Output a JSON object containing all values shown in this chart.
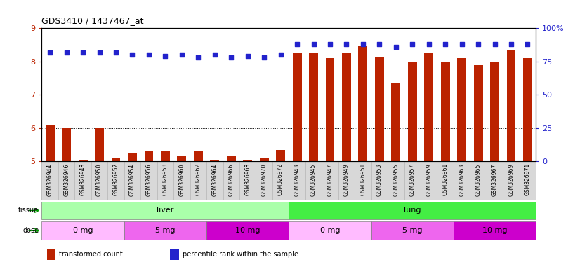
{
  "title": "GDS3410 / 1437467_at",
  "samples": [
    "GSM326944",
    "GSM326946",
    "GSM326948",
    "GSM326950",
    "GSM326952",
    "GSM326954",
    "GSM326956",
    "GSM326958",
    "GSM326960",
    "GSM326962",
    "GSM326964",
    "GSM326966",
    "GSM326968",
    "GSM326970",
    "GSM326972",
    "GSM326943",
    "GSM326945",
    "GSM326947",
    "GSM326949",
    "GSM326951",
    "GSM326953",
    "GSM326955",
    "GSM326957",
    "GSM326959",
    "GSM326961",
    "GSM326963",
    "GSM326965",
    "GSM326967",
    "GSM326969",
    "GSM326971"
  ],
  "bar_values": [
    6.1,
    6.0,
    5.05,
    6.0,
    5.1,
    5.25,
    5.3,
    5.3,
    5.15,
    5.3,
    5.05,
    5.15,
    5.05,
    5.1,
    5.35,
    8.25,
    8.25,
    8.1,
    8.25,
    8.45,
    8.15,
    7.35,
    8.0,
    8.25,
    8.0,
    8.1,
    7.9,
    8.0,
    8.35,
    8.1
  ],
  "dot_values": [
    82,
    82,
    82,
    82,
    82,
    80,
    80,
    79,
    80,
    78,
    80,
    78,
    79,
    78,
    80,
    88,
    88,
    88,
    88,
    88,
    88,
    86,
    88,
    88,
    88,
    88,
    88,
    88,
    88,
    88
  ],
  "ylim_left": [
    5,
    9
  ],
  "ylim_right": [
    0,
    100
  ],
  "yticks_left": [
    5,
    6,
    7,
    8,
    9
  ],
  "yticks_right": [
    0,
    25,
    50,
    75,
    100
  ],
  "bar_color": "#bb2200",
  "dot_color": "#2222cc",
  "bg_main": "#ffffff",
  "bg_xticklabel": "#d8d8d8",
  "tissue_colors": [
    "#aaffaa",
    "#44ee44"
  ],
  "tissue_labels": [
    "liver",
    "lung"
  ],
  "tissue_starts": [
    0,
    15
  ],
  "tissue_ends": [
    15,
    30
  ],
  "dose_colors": [
    "#ffbbff",
    "#ee66ee",
    "#cc00cc",
    "#ffbbff",
    "#ee66ee",
    "#cc00cc"
  ],
  "dose_labels": [
    "0 mg",
    "5 mg",
    "10 mg",
    "0 mg",
    "5 mg",
    "10 mg"
  ],
  "dose_starts": [
    0,
    5,
    10,
    15,
    20,
    25
  ],
  "dose_ends": [
    5,
    10,
    15,
    20,
    25,
    30
  ],
  "legend_items": [
    {
      "label": "transformed count",
      "color": "#bb2200"
    },
    {
      "label": "percentile rank within the sample",
      "color": "#2222cc"
    }
  ]
}
